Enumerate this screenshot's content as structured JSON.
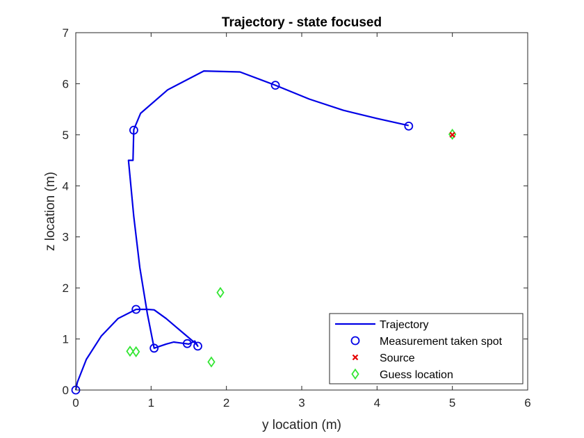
{
  "chart_data": {
    "type": "line",
    "title": "Trajectory - state focused",
    "xlabel": "y location (m)",
    "ylabel": "z location (m)",
    "xlim": [
      0,
      6
    ],
    "ylim": [
      0,
      7
    ],
    "xticks": [
      "0",
      "1",
      "2",
      "3",
      "4",
      "5",
      "6"
    ],
    "yticks": [
      "0",
      "1",
      "2",
      "3",
      "4",
      "5",
      "6",
      "7"
    ],
    "grid": false,
    "legend_position": "bottom-right",
    "series": [
      {
        "name": "Trajectory",
        "style": "line",
        "color": "#0000E6",
        "x": [
          0,
          0.02,
          0.14,
          0.34,
          0.56,
          0.8,
          0.95,
          1.04,
          1.2,
          1.4,
          1.6,
          1.62,
          1.58,
          1.5,
          1.3,
          1.2,
          1.04,
          0.95,
          0.85,
          0.77,
          0.7,
          0.76,
          0.77,
          0.86,
          1.22,
          1.7,
          2.18,
          2.65,
          3.1,
          3.55,
          4.0,
          4.42
        ],
        "y": [
          0,
          0.15,
          0.6,
          1.06,
          1.4,
          1.58,
          1.58,
          1.57,
          1.4,
          1.15,
          0.9,
          0.86,
          0.96,
          0.9,
          0.94,
          0.9,
          0.82,
          1.5,
          2.4,
          3.4,
          4.5,
          4.5,
          5.1,
          5.42,
          5.88,
          6.25,
          6.23,
          5.97,
          5.7,
          5.48,
          5.32,
          5.18
        ]
      },
      {
        "name": "Measurement taken spot",
        "style": "circle",
        "color": "#0000E6",
        "x": [
          0,
          0.8,
          1.04,
          1.48,
          1.62,
          0.77,
          2.65,
          4.42
        ],
        "y": [
          0,
          1.58,
          0.82,
          0.91,
          0.86,
          5.09,
          5.97,
          5.17
        ]
      },
      {
        "name": "Source",
        "style": "x",
        "color": "#E60000",
        "x": [
          5.0
        ],
        "y": [
          5.0
        ]
      },
      {
        "name": "Guess location",
        "style": "diamond",
        "color": "#33E633",
        "x": [
          5.0,
          1.92,
          0.72,
          0.8,
          1.8
        ],
        "y": [
          5.01,
          1.91,
          0.76,
          0.75,
          0.55
        ]
      }
    ]
  }
}
